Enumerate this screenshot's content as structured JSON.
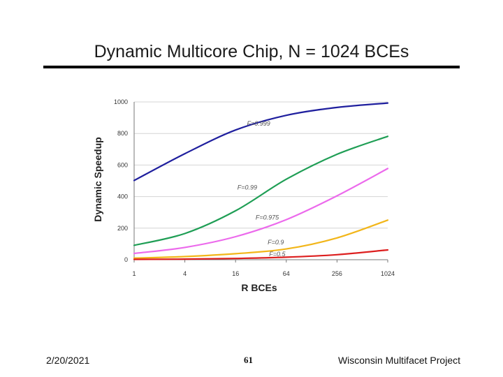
{
  "slide": {
    "title": "Dynamic Multicore Chip, N = 1024 BCEs",
    "footer_date": "2/20/2021",
    "footer_page": "61",
    "footer_project": "Wisconsin Multifacet Project"
  },
  "chart_data": {
    "type": "line",
    "xlabel": "R BCEs",
    "ylabel": "Dynamic Speedup",
    "x_scale": "log2",
    "x": [
      1,
      4,
      16,
      64,
      256,
      1024
    ],
    "x_tick_labels": [
      "1",
      "4",
      "16",
      "64",
      "256",
      "1024"
    ],
    "y_ticks": [
      0,
      200,
      400,
      600,
      800,
      1000
    ],
    "ylim": [
      0,
      1000
    ],
    "grid": true,
    "series": [
      {
        "name": "F=0.999",
        "color": "#1f1f9e",
        "values": [
          502,
          672,
          822,
          915,
          965,
          993
        ]
      },
      {
        "name": "F=0.99",
        "color": "#1f9e55",
        "values": [
          91,
          166,
          310,
          510,
          668,
          782
        ]
      },
      {
        "name": "F=0.975",
        "color": "#ec6aec",
        "values": [
          40,
          78,
          146,
          254,
          405,
          578
        ]
      },
      {
        "name": "F=0.9",
        "color": "#f2b61a",
        "values": [
          10,
          20,
          38,
          68,
          138,
          251
        ]
      },
      {
        "name": "F=0.5",
        "color": "#dd1f1f",
        "values": [
          2,
          4,
          8,
          16,
          32,
          62
        ]
      }
    ],
    "annotations": [
      {
        "text": "F=0.999",
        "series": "F=0.999",
        "x": 30,
        "y": 850
      },
      {
        "text": "F=0.99",
        "series": "F=0.99",
        "x": 22,
        "y": 445
      },
      {
        "text": "F=0.975",
        "series": "F=0.975",
        "x": 38,
        "y": 255
      },
      {
        "text": "F=0.9",
        "series": "F=0.9",
        "x": 48,
        "y": 98
      },
      {
        "text": "F=0.5",
        "series": "F=0.5",
        "x": 50,
        "y": 22
      }
    ]
  }
}
